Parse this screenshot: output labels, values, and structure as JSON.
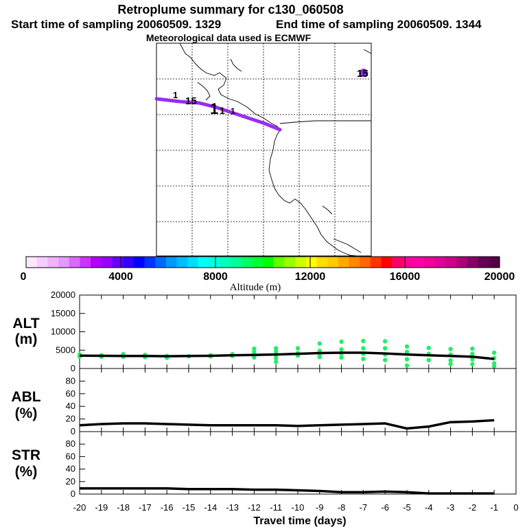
{
  "header": {
    "title": "Retroplume summary for c130_060508",
    "start_label": "Start time of sampling 20060509.  1329",
    "end_label": "End time of sampling 20060509.  1344",
    "met_label": "Meteorological data used is ECMWF"
  },
  "map": {
    "point_labels": [
      "15",
      "15",
      "1",
      "1",
      "1",
      "1"
    ],
    "plume_color": "#9b2cf0",
    "end_marker_color": "#8a2be2"
  },
  "colorbar": {
    "title": "Altitude (m)",
    "tick_labels": [
      "0",
      "4000",
      "8000",
      "12000",
      "16000",
      "20000"
    ],
    "range": [
      0,
      20000
    ],
    "colors": [
      "#ffe6ff",
      "#f7ccff",
      "#efb3ff",
      "#e699ff",
      "#dd66ff",
      "#cc33ff",
      "#b300ff",
      "#9900ff",
      "#6600ff",
      "#3300ff",
      "#0000ff",
      "#0033ff",
      "#0066ff",
      "#0099ff",
      "#00bbff",
      "#00ddff",
      "#00ffff",
      "#00ffdd",
      "#00ffbb",
      "#00ff99",
      "#00ff66",
      "#00ff33",
      "#00ff00",
      "#66ff00",
      "#99ff00",
      "#ccff00",
      "#ffff00",
      "#ffdd00",
      "#ffcc00",
      "#ffaa00",
      "#ff8800",
      "#ff6600",
      "#ff3300",
      "#ff0000",
      "#ff0066",
      "#ff0099",
      "#ff00aa",
      "#ee0099",
      "#dd0099",
      "#cc0088",
      "#aa0077",
      "#880066",
      "#660055",
      "#550044"
    ]
  },
  "chart_data": [
    {
      "type": "scatter",
      "panel": "ALT",
      "ylabel_lines": [
        "ALT",
        "(m)"
      ],
      "ylim": [
        0,
        20000
      ],
      "yticks": [
        "0",
        "5000",
        "10000",
        "15000",
        "20000"
      ],
      "x": [
        -20,
        -19,
        -18,
        -17,
        -16,
        -15,
        -14,
        -13,
        -12,
        -11,
        -10,
        -9,
        -8,
        -7,
        -6,
        -5,
        -4,
        -3,
        -2,
        -1
      ],
      "median_line": [
        3500,
        3450,
        3400,
        3400,
        3350,
        3400,
        3450,
        3600,
        3700,
        3800,
        4000,
        4200,
        4300,
        4300,
        4100,
        3800,
        3600,
        3400,
        3200,
        2600
      ],
      "points": [
        [
          -20,
          3800
        ],
        [
          -20,
          3300
        ],
        [
          -19,
          3600
        ],
        [
          -19,
          3200
        ],
        [
          -18,
          3900
        ],
        [
          -18,
          3200
        ],
        [
          -17,
          3700
        ],
        [
          -17,
          3100
        ],
        [
          -16,
          3400
        ],
        [
          -16,
          2900
        ],
        [
          -15,
          3300
        ],
        [
          -14,
          3600
        ],
        [
          -14,
          3300
        ],
        [
          -13,
          3900
        ],
        [
          -13,
          3400
        ],
        [
          -12,
          5400
        ],
        [
          -12,
          4500
        ],
        [
          -12,
          3500
        ],
        [
          -12,
          3000
        ],
        [
          -11,
          5500
        ],
        [
          -11,
          4600
        ],
        [
          -11,
          3700
        ],
        [
          -11,
          2800
        ],
        [
          -11,
          1800
        ],
        [
          -10,
          5500
        ],
        [
          -10,
          4200
        ],
        [
          -10,
          3500
        ],
        [
          -9,
          6800
        ],
        [
          -9,
          4800
        ],
        [
          -9,
          3900
        ],
        [
          -9,
          3100
        ],
        [
          -8,
          7300
        ],
        [
          -8,
          5200
        ],
        [
          -8,
          4100
        ],
        [
          -8,
          3000
        ],
        [
          -7,
          7500
        ],
        [
          -7,
          5500
        ],
        [
          -7,
          4000
        ],
        [
          -7,
          2600
        ],
        [
          -6,
          7400
        ],
        [
          -6,
          5500
        ],
        [
          -6,
          3800
        ],
        [
          -6,
          2300
        ],
        [
          -5,
          6000
        ],
        [
          -5,
          4500
        ],
        [
          -5,
          2500
        ],
        [
          -5,
          800
        ],
        [
          -4,
          5600
        ],
        [
          -4,
          4000
        ],
        [
          -4,
          2300
        ],
        [
          -3,
          5300
        ],
        [
          -3,
          3800
        ],
        [
          -3,
          2200
        ],
        [
          -3,
          1200
        ],
        [
          -2,
          5400
        ],
        [
          -2,
          4000
        ],
        [
          -2,
          2500
        ],
        [
          -2,
          1200
        ],
        [
          -1,
          4300
        ],
        [
          -1,
          2800
        ],
        [
          -1,
          1400
        ],
        [
          -1,
          600
        ]
      ],
      "point_color": "#22ee66"
    },
    {
      "type": "line",
      "panel": "ABL",
      "ylabel_lines": [
        "ABL",
        "(%)"
      ],
      "ylim": [
        0,
        100
      ],
      "yticks": [
        "0",
        "20",
        "40",
        "60",
        "80"
      ],
      "x": [
        -20,
        -19,
        -18,
        -17,
        -16,
        -15,
        -14,
        -13,
        -12,
        -11,
        -10,
        -9,
        -8,
        -7,
        -6,
        -5,
        -4,
        -3,
        -2,
        -1
      ],
      "values": [
        10,
        12,
        13,
        13,
        12,
        11,
        10,
        10,
        10,
        10,
        9,
        10,
        11,
        12,
        13,
        5,
        8,
        15,
        16,
        18
      ]
    },
    {
      "type": "line",
      "panel": "STR",
      "ylabel_lines": [
        "STR",
        "(%)"
      ],
      "ylim": [
        0,
        100
      ],
      "yticks": [
        "0",
        "20",
        "40",
        "60",
        "80"
      ],
      "x": [
        -20,
        -19,
        -18,
        -17,
        -16,
        -15,
        -14,
        -13,
        -12,
        -11,
        -10,
        -9,
        -8,
        -7,
        -6,
        -5,
        -4,
        -3,
        -2,
        -1
      ],
      "values": [
        9,
        9,
        9,
        9,
        9,
        8,
        8,
        8,
        7,
        7,
        6,
        5,
        3,
        3,
        4,
        3,
        1,
        1,
        1,
        1
      ],
      "xlabel": "Travel time (days)",
      "xtick_labels": [
        "-20",
        "-19",
        "-18",
        "-17",
        "-16",
        "-15",
        "-14",
        "-13",
        "-12",
        "-11",
        "-10",
        "-9",
        "-8",
        "-7",
        "-6",
        "-5",
        "-4",
        "-3",
        "-2",
        "-1",
        "0"
      ],
      "xlim": [
        -20,
        0
      ]
    }
  ]
}
